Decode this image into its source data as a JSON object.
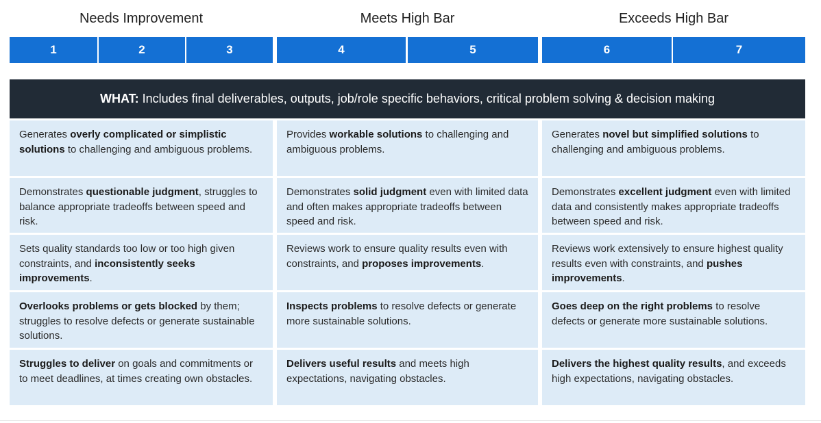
{
  "bands": [
    {
      "title": "Needs Improvement"
    },
    {
      "title": "Meets High Bar"
    },
    {
      "title": "Exceeds High Bar"
    }
  ],
  "scale": [
    "1",
    "2",
    "3",
    "4",
    "5",
    "6",
    "7"
  ],
  "what_banner": {
    "label": "WHAT:",
    "text": " Includes final deliverables, outputs, job/role specific behaviors, critical problem solving & decision making"
  },
  "rows": [
    [
      [
        {
          "t": "Generates "
        },
        {
          "t": "overly complicated or simplistic solutions",
          "b": true
        },
        {
          "t": " to challenging and ambiguous problems."
        }
      ],
      [
        {
          "t": "Provides "
        },
        {
          "t": "workable solutions",
          "b": true
        },
        {
          "t": " to challenging and ambiguous problems."
        }
      ],
      [
        {
          "t": "Generates "
        },
        {
          "t": "novel but simplified solutions",
          "b": true
        },
        {
          "t": " to challenging and ambiguous problems."
        }
      ]
    ],
    [
      [
        {
          "t": "Demonstrates "
        },
        {
          "t": "questionable judgment",
          "b": true
        },
        {
          "t": ", struggles to balance appropriate tradeoffs between speed and risk."
        }
      ],
      [
        {
          "t": "Demonstrates "
        },
        {
          "t": "solid judgment",
          "b": true
        },
        {
          "t": " even with limited data and often makes appropriate tradeoffs between speed and risk."
        }
      ],
      [
        {
          "t": "Demonstrates "
        },
        {
          "t": "excellent judgment",
          "b": true
        },
        {
          "t": " even with limited data and consistently makes appropriate tradeoffs between speed and risk."
        }
      ]
    ],
    [
      [
        {
          "t": "Sets quality standards too low or too high given constraints, and "
        },
        {
          "t": "inconsistently seeks improvements",
          "b": true
        },
        {
          "t": "."
        }
      ],
      [
        {
          "t": "Reviews work to ensure quality results even with constraints, and "
        },
        {
          "t": "proposes improvements",
          "b": true
        },
        {
          "t": "."
        }
      ],
      [
        {
          "t": "Reviews work extensively to ensure highest quality results even with constraints, and "
        },
        {
          "t": "pushes improvements",
          "b": true
        },
        {
          "t": "."
        }
      ]
    ],
    [
      [
        {
          "t": "Overlooks problems or gets blocked",
          "b": true
        },
        {
          "t": " by them; struggles to resolve defects or generate sustainable solutions."
        }
      ],
      [
        {
          "t": "Inspects problems",
          "b": true
        },
        {
          "t": " to resolve defects or generate more sustainable solutions."
        }
      ],
      [
        {
          "t": "Goes deep on the right problems",
          "b": true
        },
        {
          "t": " to resolve defects or generate more sustainable solutions."
        }
      ]
    ],
    [
      [
        {
          "t": "Struggles to deliver",
          "b": true
        },
        {
          "t": " on goals and commitments or to meet deadlines, at times creating own obstacles."
        }
      ],
      [
        {
          "t": "Delivers useful results",
          "b": true
        },
        {
          "t": " and meets high expectations, navigating obstacles."
        }
      ],
      [
        {
          "t": "Delivers the highest quality results",
          "b": true
        },
        {
          "t": ", and exceeds high expectations, navigating obstacles."
        }
      ]
    ]
  ],
  "colors": {
    "scale_blue": "#1470d4",
    "banner_dark": "#212b36",
    "cell_bg": "#ddebf7"
  }
}
